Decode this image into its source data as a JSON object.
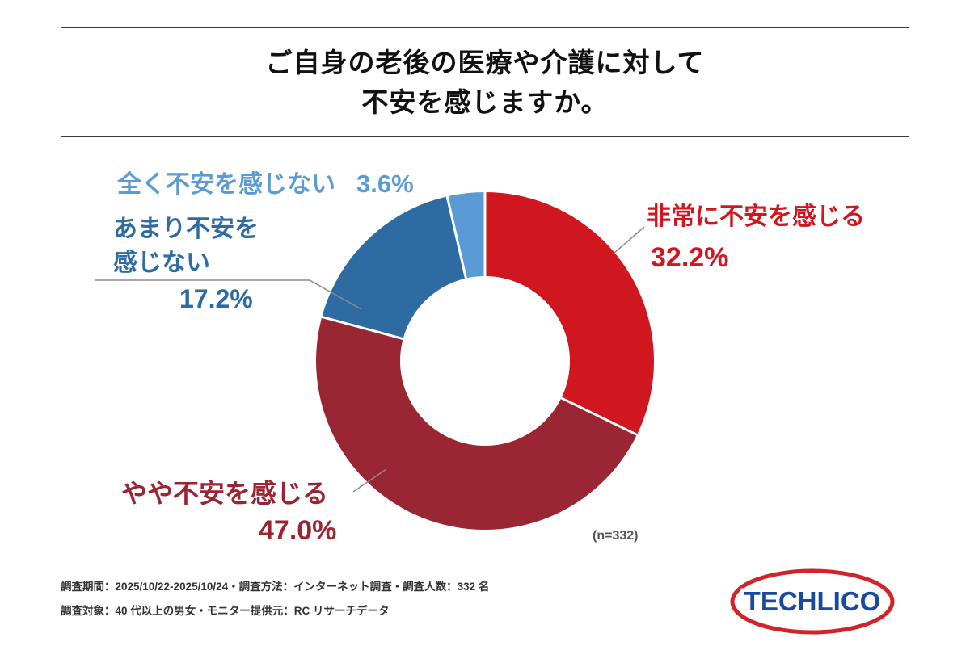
{
  "title": {
    "line1": "ご自身の老後の医療や介護に対して",
    "line2": "不安を感じますか。"
  },
  "chart_data": {
    "type": "pie",
    "subtype": "donut",
    "title": "ご自身の老後の医療や介護に対して不安を感じますか。",
    "sample_size": 332,
    "n_label": "(n=332)",
    "start_angle_deg": 0,
    "direction": "clockwise",
    "legend_position": "labels-around-chart",
    "slices": [
      {
        "label": "非常に不安を感じる",
        "value": 32.2,
        "display": "32.2%",
        "color": "#d0161f"
      },
      {
        "label": "やや不安を感じる",
        "value": 47.0,
        "display": "47.0%",
        "color": "#9a2533"
      },
      {
        "label": "あまり不安を感じない",
        "value": 17.2,
        "display": "17.2%",
        "color": "#2f6ba3"
      },
      {
        "label": "全く不安を感じない",
        "value": 3.6,
        "display": "3.6%",
        "color": "#5b9bd5"
      }
    ]
  },
  "labels": {
    "zenzen": {
      "name": "全く不安を感じない",
      "pct": "3.6%"
    },
    "amari": {
      "line1": "あまり不安を",
      "line2": "感じない",
      "pct": "17.2%"
    },
    "hijou": {
      "name": "非常に不安を感じる",
      "pct": "32.2%"
    },
    "yaya": {
      "name": "やや不安を感じる",
      "pct": "47.0%"
    },
    "n": "(n=332)"
  },
  "footer": {
    "line1": "調査期間：2025/10/22-2025/10/24・調査方法：インターネット調査・調査人数：332 名",
    "line2": "調査対象：40 代以上の男女・モニター提供元：RC リサーチデータ"
  },
  "logo": {
    "text": "TECHLICO",
    "text_color": "#1a4a9e",
    "ellipse_color": "#d2232a"
  }
}
